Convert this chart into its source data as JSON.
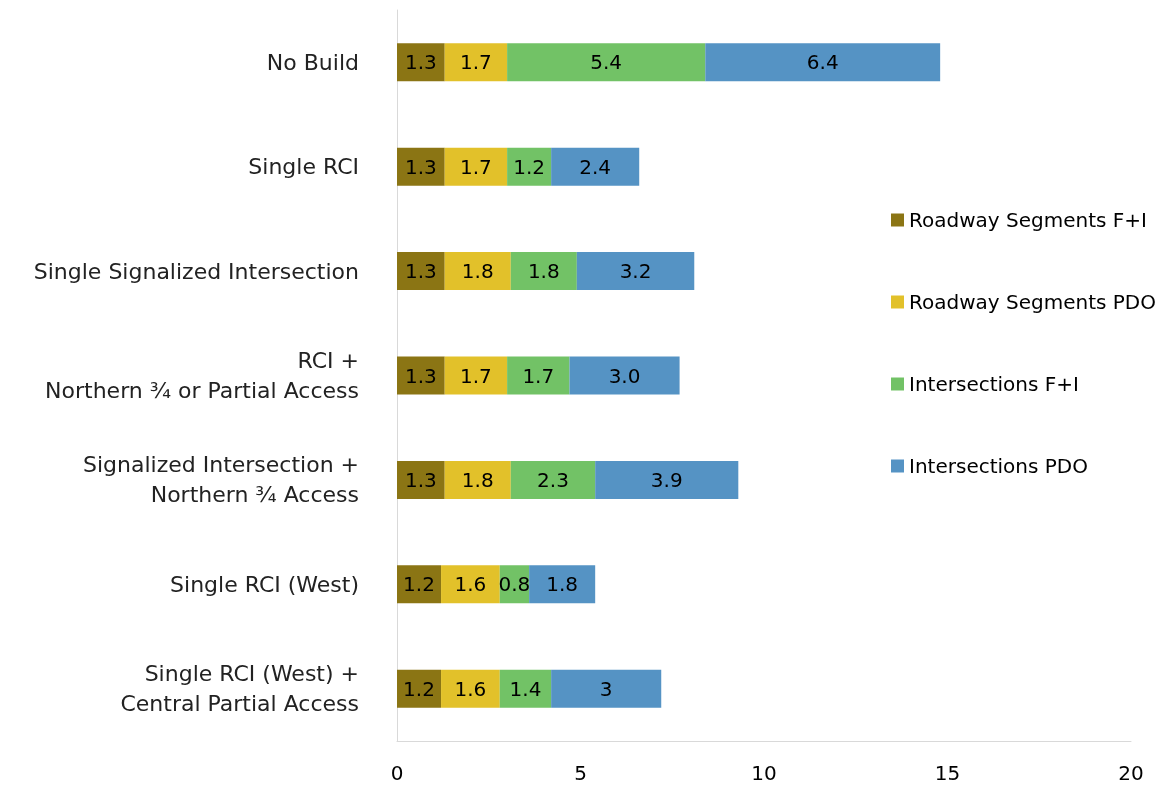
{
  "chart_data": {
    "type": "bar",
    "orientation": "horizontal",
    "stacked": true,
    "categories": [
      "No Build",
      "Single RCI",
      "Single Signalized Intersection",
      "RCI +\nNorthern ¾ or Partial Access",
      "Signalized Intersection +\nNorthern ¾ Access",
      "Single RCI (West)",
      "Single RCI (West) +\nCentral Partial Access"
    ],
    "series": [
      {
        "name": "Roadway Segments F+I",
        "color": "#8b7514",
        "values": [
          1.3,
          1.3,
          1.3,
          1.3,
          1.3,
          1.2,
          1.2
        ],
        "value_labels": [
          "1.3",
          "1.3",
          "1.3",
          "1.3",
          "1.3",
          "1.2",
          "1.2"
        ]
      },
      {
        "name": "Roadway Segments PDO",
        "color": "#e2c12a",
        "values": [
          1.7,
          1.7,
          1.8,
          1.7,
          1.8,
          1.6,
          1.6
        ],
        "value_labels": [
          "1.7",
          "1.7",
          "1.8",
          "1.7",
          "1.8",
          "1.6",
          "1.6"
        ]
      },
      {
        "name": "Intersections F+I",
        "color": "#72c266",
        "values": [
          5.4,
          1.2,
          1.8,
          1.7,
          2.3,
          0.8,
          1.4
        ],
        "value_labels": [
          "5.4",
          "1.2",
          "1.8",
          "1.7",
          "2.3",
          "0.8",
          "1.4"
        ]
      },
      {
        "name": "Intersections PDO",
        "color": "#5593c4",
        "values": [
          6.4,
          2.4,
          3.2,
          3.0,
          3.9,
          1.8,
          3
        ],
        "value_labels": [
          "6.4",
          "2.4",
          "3.2",
          "3.0",
          "3.9",
          "1.8",
          "3"
        ]
      }
    ],
    "xlim": [
      0,
      20
    ],
    "xticks": [
      0,
      5,
      10,
      15,
      20
    ],
    "grid": false,
    "legend": "right"
  }
}
